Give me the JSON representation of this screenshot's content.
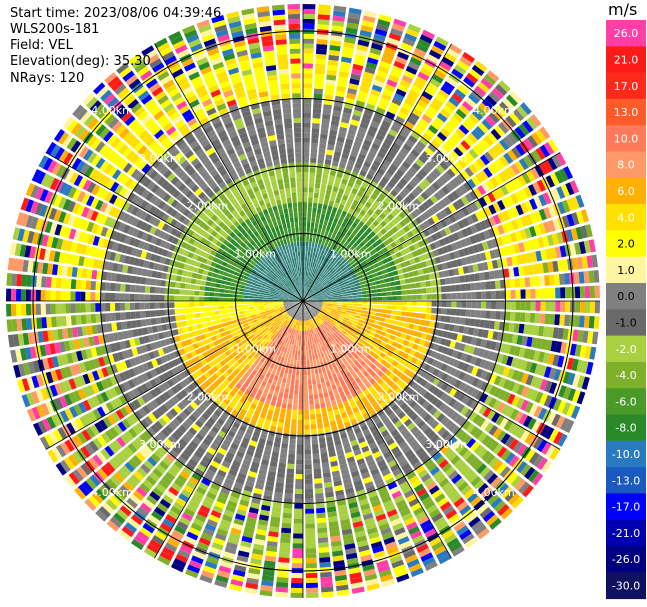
{
  "header": {
    "start_time": "Start time: 2023/08/06 04:39:46",
    "instrument": "WLS200s-181",
    "field": "Field: VEL",
    "elevation": "Elevation(deg): 35.30",
    "nrays": "NRays: 120"
  },
  "colorbar": {
    "unit": "m/s",
    "ticks": [
      "26.0",
      "21.0",
      "17.0",
      "13.0",
      "10.0",
      "8.0",
      "6.0",
      "4.0",
      "2.0",
      "1.0",
      "0.0",
      "-1.0",
      "-2.0",
      "-4.0",
      "-6.0",
      "-8.0",
      "-10.0",
      "-13.0",
      "-17.0",
      "-21.0",
      "-26.0",
      "-30.0"
    ],
    "colors": [
      "#ff3fa6",
      "#ff1a1a",
      "#ff2a1a",
      "#ff5a2a",
      "#ff7a5a",
      "#ff9966",
      "#ffb000",
      "#ffe000",
      "#ffff00",
      "#fff4a0",
      "#808080",
      "#6a6a6a",
      "#a8d040",
      "#7fb02a",
      "#4a9a2a",
      "#2a8a2a",
      "#2a7ac0",
      "#1a5ac0",
      "#0000ff",
      "#0000b0",
      "#000080",
      "#101060"
    ]
  },
  "chart_data": {
    "type": "ppi",
    "title": "",
    "range_rings_km": [
      1.0,
      2.0,
      3.0,
      4.0
    ],
    "range_ring_labels": [
      "1.00km",
      "2.00km",
      "3.00km",
      "4.00km"
    ],
    "max_range_km": 4.4,
    "nrays": 120,
    "field": "VEL",
    "value_range": [
      -30.0,
      26.0
    ],
    "description_of_pattern": [
      "northern half mostly negative/near-zero (green/gray)",
      "southern-center strongly positive (orange/yellow)",
      "outer ranges noisy multi-color"
    ]
  }
}
